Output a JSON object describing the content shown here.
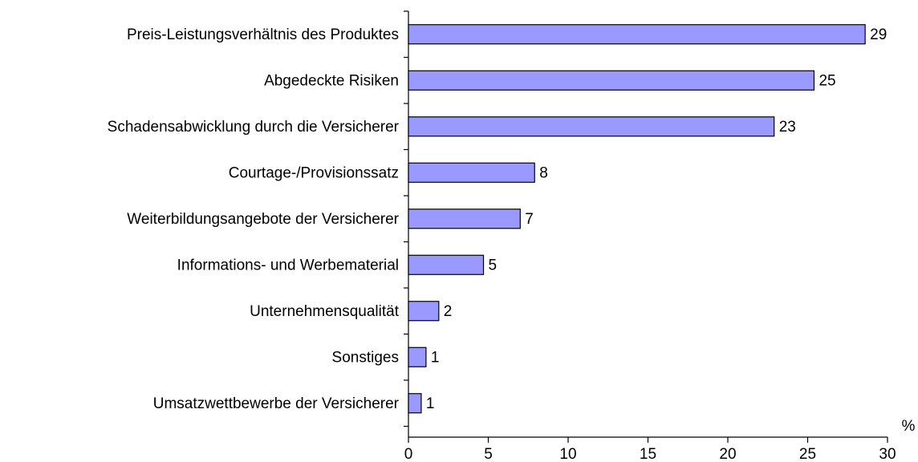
{
  "chart_data": {
    "type": "bar",
    "orientation": "horizontal",
    "categories": [
      "Preis-Leistungsverhältnis des Produktes",
      "Abgedeckte Risiken",
      "Schadensabwicklung durch die Versicherer",
      "Courtage-/Provisionssatz",
      "Weiterbildungsangebote der Versicherer",
      "Informations- und Werbematerial",
      "Unternehmensqualität",
      "Sonstiges",
      "Umsatzwettbewerbe der Versicherer"
    ],
    "values": [
      28.6,
      25.4,
      22.9,
      7.9,
      7.0,
      4.7,
      1.9,
      1.1,
      0.8
    ],
    "value_labels": [
      "29",
      "25",
      "23",
      "8",
      "7",
      "5",
      "2",
      "1",
      "1"
    ],
    "color": "#9999ff",
    "xlabel": "%",
    "xlim": [
      0,
      30
    ],
    "xticks": [
      0,
      5,
      10,
      15,
      20,
      25,
      30
    ]
  }
}
